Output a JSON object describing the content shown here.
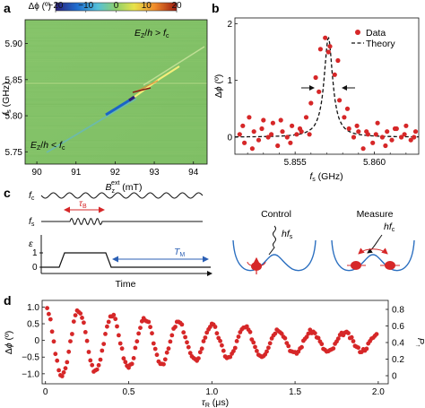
{
  "figure": {
    "panel_labels": [
      "a",
      "b",
      "c",
      "d"
    ]
  },
  "panel_a": {
    "colorbar_label": "Δϕ (º)",
    "colorbar_ticks": [
      "−20",
      "−10",
      "0",
      "10",
      "20"
    ],
    "colorbar_range": [
      -20,
      20
    ],
    "ylabel": "f_s (GHz)",
    "xlabel": "B_z^ext (mT)",
    "x_ticks": [
      "90",
      "91",
      "92",
      "93",
      "94"
    ],
    "y_ticks": [
      "5.75",
      "5.80",
      "5.85",
      "5.90"
    ],
    "annotation_upper": "E_Z/h > f_c",
    "annotation_lower": "E_Z/h < f_c"
  },
  "panel_c": {
    "label_fc": "f_c",
    "label_fs": "f_s",
    "label_eps": "ε",
    "eps_ticks": [
      "1",
      "0"
    ],
    "tau_b": "τ_B",
    "t_m": "T_M",
    "time_label": "Time",
    "control_label": "Control",
    "measure_label": "Measure",
    "hfs_label": "hf_s",
    "hfc_label": "hf_c"
  },
  "chart_data": [
    {
      "panel": "b",
      "type": "scatter",
      "xlabel": "f_s (GHz)",
      "ylabel": "Δϕ (º)",
      "xlim": [
        5.8512,
        5.8628
      ],
      "ylim": [
        -0.3,
        2.1
      ],
      "x_ticks": [
        "5.855",
        "5.860"
      ],
      "y_ticks": [
        "0",
        "1",
        "2"
      ],
      "legend": [
        "Data",
        "Theory"
      ],
      "legend_position": "top-right",
      "series": [
        {
          "name": "Data",
          "x": [
            5.8515,
            5.8518,
            5.8521,
            5.8524,
            5.8527,
            5.853,
            5.8533,
            5.8536,
            5.8539,
            5.8542,
            5.8545,
            5.8548,
            5.8551,
            5.8554,
            5.8557,
            5.856,
            5.8563,
            5.8566,
            5.8569,
            5.8572,
            5.8575,
            5.8578,
            5.8581,
            5.8584,
            5.8587,
            5.859,
            5.8593,
            5.8596,
            5.8599,
            5.8602,
            5.8605,
            5.8608,
            5.8611,
            5.8614,
            5.8617,
            5.862,
            5.8623,
            5.8626,
            5.8517,
            5.8523,
            5.8529,
            5.8535,
            5.8541,
            5.8547,
            5.8553,
            5.8559,
            5.8565,
            5.8571,
            5.8577,
            5.8583,
            5.8589,
            5.8595,
            5.8601,
            5.8607,
            5.8613,
            5.8619,
            5.8625
          ],
          "y": [
            0.05,
            -0.1,
            0.35,
            0.1,
            -0.05,
            0.3,
            0.0,
            0.25,
            -0.15,
            0.1,
            0.0,
            0.2,
            0.05,
            0.1,
            0.35,
            0.6,
            1.05,
            1.55,
            1.75,
            1.6,
            1.1,
            0.65,
            0.35,
            0.15,
            0.0,
            0.1,
            -0.2,
            0.05,
            -0.1,
            0.25,
            0.0,
            0.1,
            -0.05,
            0.15,
            0.0,
            0.2,
            -0.05,
            0.1,
            0.2,
            -0.2,
            0.15,
            0.05,
            0.3,
            -0.1,
            0.15,
            0.05,
            0.8,
            1.5,
            1.35,
            0.5,
            0.2,
            0.1,
            0.05,
            -0.15,
            0.15,
            0.05,
            0.0
          ]
        },
        {
          "name": "Theory",
          "model": "lorentzian",
          "center": 5.8571,
          "fwhm": 0.00065,
          "amplitude": 1.75
        }
      ]
    },
    {
      "panel": "d",
      "type": "scatter",
      "xlabel": "τ_R (μs)",
      "ylabel": "Δϕ (º)",
      "ylabel_right": "P_↑",
      "xlim": [
        -0.02,
        2.06
      ],
      "ylim": [
        -1.3,
        1.2
      ],
      "x_ticks": [
        "0",
        "0.5",
        "1.0",
        "1.5",
        "2.0"
      ],
      "y_ticks": [
        "1.0",
        "0.5",
        "0",
        "−0.5",
        "−1.0"
      ],
      "y_ticks_right": [
        "0.8",
        "0.6",
        "0.4",
        "0.2",
        "0"
      ],
      "series": [
        {
          "name": "",
          "model": "damped-rabi",
          "tmin": 0.01,
          "tmax": 1.99,
          "step": 0.01,
          "frequency_mhz": 5.0,
          "amplitude": 1.1,
          "offset": -0.05,
          "decay_us": 1.3
        }
      ]
    }
  ]
}
